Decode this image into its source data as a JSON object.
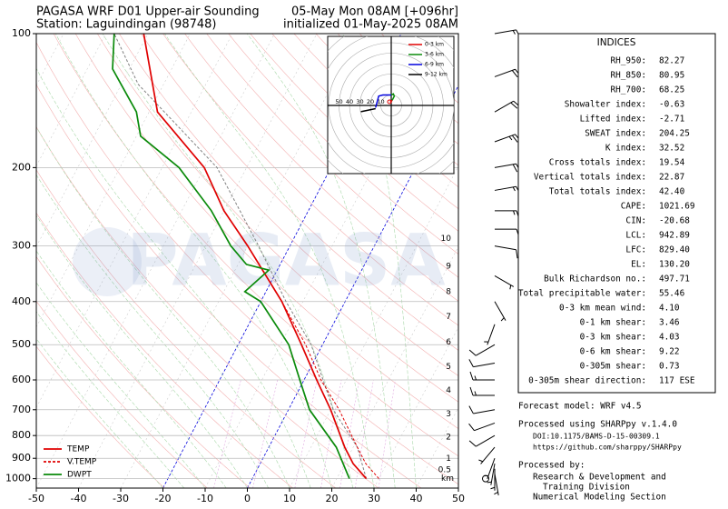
{
  "chart_data": {
    "type": "skewt",
    "title": "PAGASA WRF D01 Upper-air Sounding",
    "subtitle": "Station: Laguindingan (98748)",
    "title_right": "05-May Mon 08AM [+096hr]",
    "subtitle_right": "initialized 01-May-2025 08AM",
    "watermark": "PAGASA",
    "log_y": true,
    "grid": true,
    "legend": "lower left",
    "xlim": [
      -50,
      50
    ],
    "xticks": [
      -50,
      -40,
      -30,
      -20,
      -10,
      0,
      10,
      20,
      30,
      40,
      50
    ],
    "ylim": [
      1050,
      100
    ],
    "yticks": [
      100,
      200,
      300,
      400,
      500,
      600,
      700,
      800,
      900,
      1000
    ],
    "highlight_isotherms": [
      -20,
      0
    ],
    "series": [
      {
        "name": "TEMP",
        "color": "#e00000",
        "dash": false,
        "pressure": [
          1000,
          925,
          850,
          700,
          600,
          500,
          400,
          300,
          250,
          200,
          150,
          100
        ],
        "values": [
          27,
          22,
          18,
          10,
          3,
          -5,
          -15,
          -30,
          -40,
          -50,
          -68,
          -81
        ]
      },
      {
        "name": "V.TEMP",
        "color": "#e00000",
        "dash": true,
        "pressure": [
          1000,
          925,
          850,
          700,
          600,
          500,
          400,
          300
        ],
        "values": [
          30,
          25,
          21,
          12,
          4,
          -4,
          -15,
          -30
        ]
      },
      {
        "name": "DWPT",
        "color": "#0a8a0a",
        "dash": false,
        "pressure": [
          1000,
          850,
          700,
          600,
          500,
          400,
          380,
          340,
          330,
          300,
          250,
          200,
          170,
          150,
          120,
          100
        ],
        "values": [
          23,
          16,
          5,
          -1,
          -8,
          -20,
          -25,
          -22,
          -28,
          -34,
          -43,
          -56,
          -69,
          -73,
          -84,
          -88
        ]
      }
    ],
    "parcel": {
      "color": "#808080",
      "pressure": [
        1000,
        850,
        700,
        500,
        400,
        300,
        200,
        130,
        100
      ],
      "values": [
        27,
        21,
        10.6,
        -2.7,
        -14,
        -27.4,
        -47,
        -76,
        -88
      ]
    },
    "height_km": {
      "values": [
        10,
        9,
        8,
        7,
        6,
        5,
        4,
        3,
        2,
        1,
        0.5
      ],
      "pressure": [
        289,
        333,
        380,
        433,
        494,
        561,
        634,
        716,
        806,
        902,
        955
      ],
      "unit": "km"
    },
    "wind": {
      "pressure": [
        100,
        125,
        150,
        175,
        200,
        225,
        250,
        275,
        300,
        350,
        400,
        450,
        500,
        550,
        600,
        650,
        700,
        750,
        800,
        850,
        900,
        925,
        950,
        975,
        1000
      ],
      "speed": [
        15,
        20,
        20,
        25,
        20,
        15,
        15,
        10,
        10,
        5,
        5,
        5,
        10,
        10,
        15,
        15,
        10,
        10,
        10,
        5,
        5,
        5,
        5,
        5,
        0
      ],
      "direction": [
        80,
        70,
        60,
        70,
        80,
        80,
        90,
        90,
        100,
        120,
        150,
        200,
        240,
        260,
        270,
        270,
        260,
        250,
        240,
        220,
        200,
        190,
        180,
        170,
        160
      ]
    },
    "hodograph": {
      "rings": [
        10,
        20,
        30,
        40,
        50
      ],
      "segments": [
        {
          "name": "0-3 km",
          "color": "#e00000",
          "u": [
            -1,
            1
          ],
          "v": [
            3,
            5
          ]
        },
        {
          "name": "3-6 km",
          "color": "#0a8a0a",
          "u": [
            1,
            3,
            2,
            0
          ],
          "v": [
            5,
            9,
            11,
            10
          ]
        },
        {
          "name": "6-9 km",
          "color": "#0000dd",
          "u": [
            0,
            -8,
            -12,
            -15
          ],
          "v": [
            10,
            10,
            9,
            -2
          ]
        },
        {
          "name": "9-12 km",
          "color": "#000000",
          "u": [
            -15,
            -29
          ],
          "v": [
            -3,
            -6
          ]
        }
      ]
    },
    "indices": {
      "title": "INDICES",
      "rows": [
        {
          "label": "RH_950:",
          "value": 82.27
        },
        {
          "label": "RH_850:",
          "value": 80.95
        },
        {
          "label": "RH_700:",
          "value": 68.25
        },
        {
          "label": "Showalter index:",
          "value": -0.63
        },
        {
          "label": "Lifted index:",
          "value": -2.71
        },
        {
          "label": "SWEAT index:",
          "value": 204.25
        },
        {
          "label": "K index:",
          "value": 32.52
        },
        {
          "label": "Cross totals index:",
          "value": 19.54
        },
        {
          "label": "Vertical totals index:",
          "value": 22.87
        },
        {
          "label": "Total totals index:",
          "value": "42.40"
        },
        {
          "label": "CAPE:",
          "value": 1021.69
        },
        {
          "label": "CIN:",
          "value": -20.68
        },
        {
          "label": "LCL:",
          "value": 942.89
        },
        {
          "label": "LFC:",
          "value": "829.40"
        },
        {
          "label": "EL:",
          "value": "130.20"
        },
        {
          "label": "Bulk Richardson no.:",
          "value": 497.71
        },
        {
          "label": "Total precipitable water:",
          "value": 55.46
        },
        {
          "label": "0-3 km mean wind:",
          "value": "4.10"
        },
        {
          "label": "0-1 km shear:",
          "value": 3.46
        },
        {
          "label": "0-3 km shear:",
          "value": 4.03
        },
        {
          "label": "0-6 km shear:",
          "value": 9.22
        },
        {
          "label": "0-305m shear:",
          "value": 0.73
        },
        {
          "label": "0-305m shear direction:",
          "value": "117 ESE"
        }
      ]
    }
  },
  "notes": {
    "model": "Forecast model: WRF v4.5",
    "processed": "Processed using SHARPpy v.1.4.0",
    "doi": "DOI:10.1175/BAMS-D-15-00309.1",
    "url": "https://github.com/sharppy/SHARPpy",
    "by": "Processed by:",
    "org1": "Research & Development and",
    "org2": "Training Division",
    "org3": "Numerical Modeling Section"
  }
}
